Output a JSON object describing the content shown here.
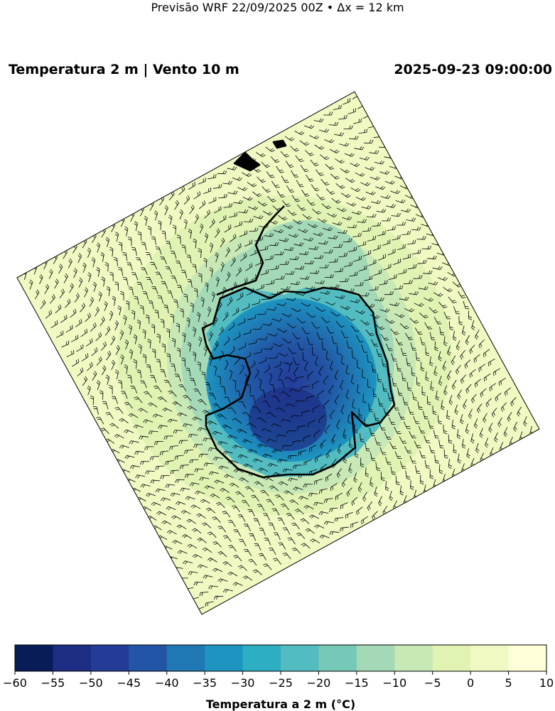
{
  "header": {
    "suptitle": "Previsão WRF 22/09/2025 00Z • Δx = 12 km",
    "left_title": "Temperatura 2 m | Vento 10 m",
    "right_title": "2025-09-23 09:00:00"
  },
  "map": {
    "field": "2 m temperature with 10 m wind barbs",
    "region": "Antarctica",
    "coastline_color": "#000000",
    "barb_color": "#000000"
  },
  "colorbar": {
    "label": "Temperatura a 2 m (°C)",
    "ticks": [
      -60,
      -55,
      -50,
      -45,
      -40,
      -35,
      -30,
      -25,
      -20,
      -15,
      -10,
      -5,
      0,
      5,
      10
    ],
    "tick_labels": [
      "−60",
      "−55",
      "−50",
      "−45",
      "−40",
      "−35",
      "−30",
      "−25",
      "−20",
      "−15",
      "−10",
      "−5",
      "0",
      "5",
      "10"
    ],
    "colors": [
      "#081d58",
      "#1c2d83",
      "#243c98",
      "#2255a5",
      "#1f78b4",
      "#1e95c0",
      "#2eaec1",
      "#52bcc1",
      "#77c9b7",
      "#a3d9b6",
      "#c8e8b5",
      "#e0f3b3",
      "#f0f9c2",
      "#ffffd9"
    ]
  }
}
